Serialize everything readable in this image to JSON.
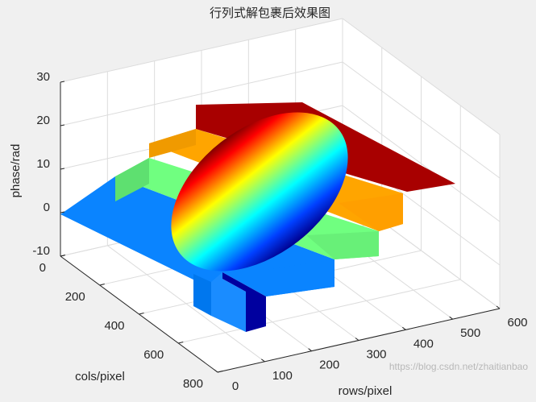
{
  "chart_data": {
    "type": "surface3d",
    "title": "行列式解包裹后效果图",
    "xlabel": "rows/pixel",
    "ylabel": "cols/pixel",
    "zlabel": "phase/rad",
    "xlim": [
      0,
      600
    ],
    "xticks": [
      0,
      100,
      200,
      300,
      400,
      500,
      600
    ],
    "ylim": [
      0,
      800
    ],
    "yticks": [
      0,
      200,
      400,
      600,
      800
    ],
    "zlim": [
      -10,
      30
    ],
    "zticks": [
      -10,
      0,
      10,
      20,
      30
    ],
    "grid": true,
    "colormap": "jet",
    "watermark": "https://blog.csdn.net/zhaitianbao"
  }
}
